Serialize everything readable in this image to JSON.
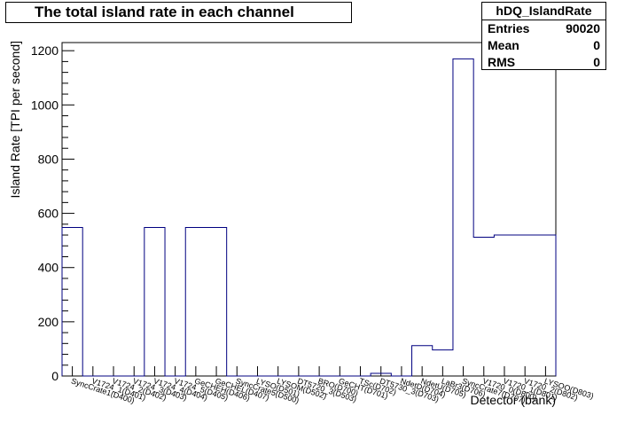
{
  "chart_data": {
    "type": "bar",
    "title": "The total island rate in each channel",
    "ylabel": "Island Rate [TPI per second]",
    "xlabel": "Detector (bank)",
    "ylim": [
      0,
      1230
    ],
    "yticks": [
      0,
      200,
      400,
      600,
      800,
      1000,
      1200
    ],
    "grid": false,
    "stats": {
      "name": "hDQ_IslandRate",
      "rows": [
        {
          "label": "Entries",
          "value": "90020"
        },
        {
          "label": "Mean",
          "value": "0"
        },
        {
          "label": "RMS",
          "value": "0"
        }
      ]
    },
    "categories": [
      "SyncCrate1(D400)",
      "V1724_1(D401)",
      "V1724_2(D402)",
      "V1724_3(D403)",
      "V1724_4(D404)",
      "V1724_5(D405)",
      "GeCHEH(D406)",
      "GeCHEL(D407)",
      "SyncCrate5(D500)",
      "LYSO(D501)",
      "LYSOM(D502)",
      "DT5720_3(D503)",
      "BRO(D700)",
      "GeCHT(D701)",
      "TSc(D702)",
      "DT5730_3(D703)",
      "NdetD(D704)",
      "NdetU(D705)",
      "LaBr3(D706)",
      "SyncCrate7(D707)",
      "V1720_0(D800)",
      "V1720_1(D801)",
      "V1720_2(D802)",
      "LYSOO(D803)"
    ],
    "values": [
      548,
      0,
      0,
      0,
      548,
      0,
      548,
      548,
      0,
      0,
      0,
      0,
      0,
      0,
      0,
      10,
      0,
      112,
      96,
      1170,
      512,
      520,
      520,
      520
    ]
  }
}
